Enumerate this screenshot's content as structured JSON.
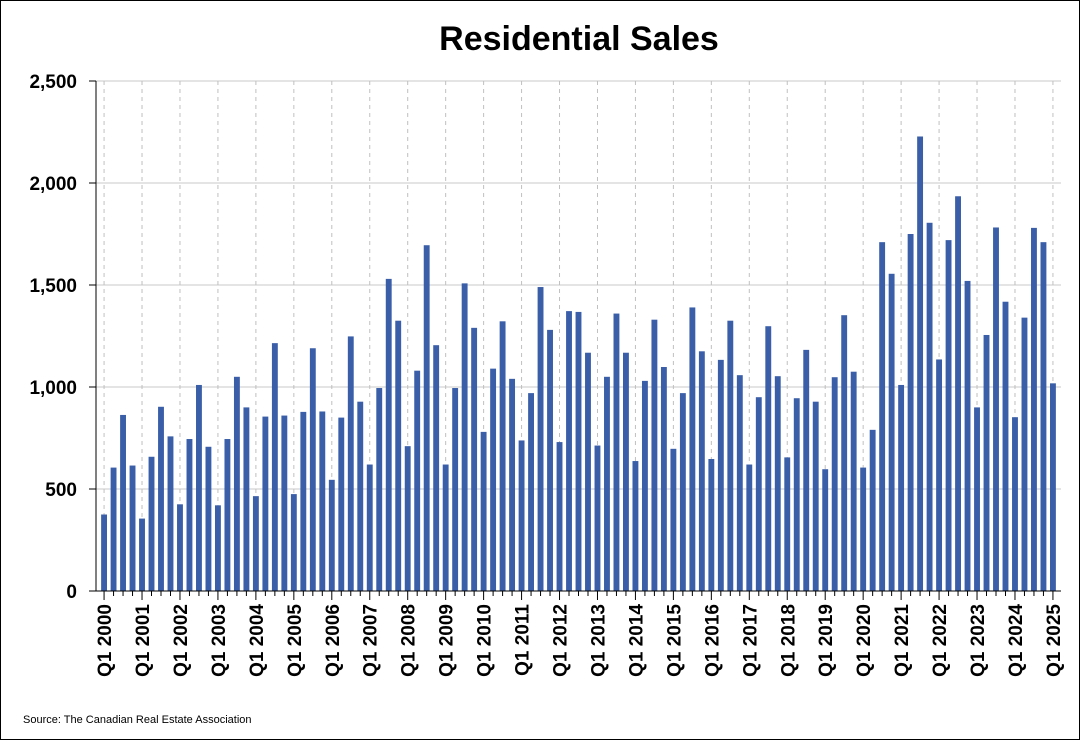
{
  "chart_data": {
    "type": "bar",
    "title": "Residential Sales",
    "xlabel": "",
    "ylabel": "",
    "ylim": [
      0,
      2500
    ],
    "yticks": [
      0,
      500,
      1000,
      1500,
      2000,
      2500
    ],
    "ytick_labels": [
      "0",
      "500",
      "1,000",
      "1,500",
      "2,000",
      "2,500"
    ],
    "grid": true,
    "colors": {
      "bar": "#3a5fa8",
      "grid": "#c8c8c8",
      "vgrid": "#c0c0c0",
      "axis": "#000000"
    },
    "source": "Source: The Canadian Real Estate Association",
    "xtick_labels": [
      "Q1 2000",
      "Q1 2001",
      "Q1 2002",
      "Q1 2003",
      "Q1 2004",
      "Q1 2005",
      "Q1 2006",
      "Q1 2007",
      "Q1 2008",
      "Q1 2009",
      "Q1 2010",
      "Q1 2011",
      "Q1 2012",
      "Q1 2013",
      "Q1 2014",
      "Q1 2015",
      "Q1 2016",
      "Q1 2017",
      "Q1 2018",
      "Q1 2019",
      "Q1 2020",
      "Q1 2021",
      "Q1 2022",
      "Q1 2023",
      "Q1 2024",
      "Q1 2025"
    ],
    "categories": [
      "Q1 2000",
      "Q2 2000",
      "Q3 2000",
      "Q4 2000",
      "Q1 2001",
      "Q2 2001",
      "Q3 2001",
      "Q4 2001",
      "Q1 2002",
      "Q2 2002",
      "Q3 2002",
      "Q4 2002",
      "Q1 2003",
      "Q2 2003",
      "Q3 2003",
      "Q4 2003",
      "Q1 2004",
      "Q2 2004",
      "Q3 2004",
      "Q4 2004",
      "Q1 2005",
      "Q2 2005",
      "Q3 2005",
      "Q4 2005",
      "Q1 2006",
      "Q2 2006",
      "Q3 2006",
      "Q4 2006",
      "Q1 2007",
      "Q2 2007",
      "Q3 2007",
      "Q4 2007",
      "Q1 2008",
      "Q2 2008",
      "Q3 2008",
      "Q4 2008",
      "Q1 2009",
      "Q2 2009",
      "Q3 2009",
      "Q4 2009",
      "Q1 2010",
      "Q2 2010",
      "Q3 2010",
      "Q4 2010",
      "Q1 2011",
      "Q2 2011",
      "Q3 2011",
      "Q4 2011",
      "Q1 2012",
      "Q2 2012",
      "Q3 2012",
      "Q4 2012",
      "Q1 2013",
      "Q2 2013",
      "Q3 2013",
      "Q4 2013",
      "Q1 2014",
      "Q2 2014",
      "Q3 2014",
      "Q4 2014",
      "Q1 2015",
      "Q2 2015",
      "Q3 2015",
      "Q4 2015",
      "Q1 2016",
      "Q2 2016",
      "Q3 2016",
      "Q4 2016",
      "Q1 2017",
      "Q2 2017",
      "Q3 2017",
      "Q4 2017",
      "Q1 2018",
      "Q2 2018",
      "Q3 2018",
      "Q4 2018",
      "Q1 2019",
      "Q2 2019",
      "Q3 2019",
      "Q4 2019",
      "Q1 2020",
      "Q2 2020",
      "Q3 2020",
      "Q4 2020",
      "Q1 2021",
      "Q2 2021",
      "Q3 2021",
      "Q4 2021",
      "Q1 2022",
      "Q2 2022",
      "Q3 2022",
      "Q4 2022",
      "Q1 2023",
      "Q2 2023",
      "Q3 2023",
      "Q4 2023",
      "Q1 2024",
      "Q2 2024",
      "Q3 2024",
      "Q4 2024",
      "Q1 2025"
    ],
    "values": [
      375,
      605,
      863,
      615,
      355,
      658,
      903,
      758,
      425,
      745,
      1010,
      707,
      420,
      745,
      1050,
      900,
      465,
      855,
      1215,
      860,
      475,
      878,
      1190,
      880,
      545,
      850,
      1248,
      928,
      620,
      995,
      1530,
      1325,
      710,
      1080,
      1695,
      1205,
      620,
      995,
      1508,
      1290,
      780,
      1090,
      1322,
      1040,
      738,
      970,
      1490,
      1280,
      730,
      1372,
      1368,
      1168,
      713,
      1050,
      1360,
      1168,
      637,
      1030,
      1330,
      1098,
      697,
      970,
      1390,
      1175,
      647,
      1133,
      1325,
      1058,
      620,
      950,
      1298,
      1053,
      655,
      945,
      1182,
      928,
      597,
      1048,
      1352,
      1075,
      605,
      790,
      1710,
      1555,
      1010,
      1750,
      2228,
      1805,
      1135,
      1720,
      1935,
      1520,
      900,
      1255,
      1782,
      1418,
      852,
      1340,
      1780,
      1710,
      1018
    ]
  }
}
